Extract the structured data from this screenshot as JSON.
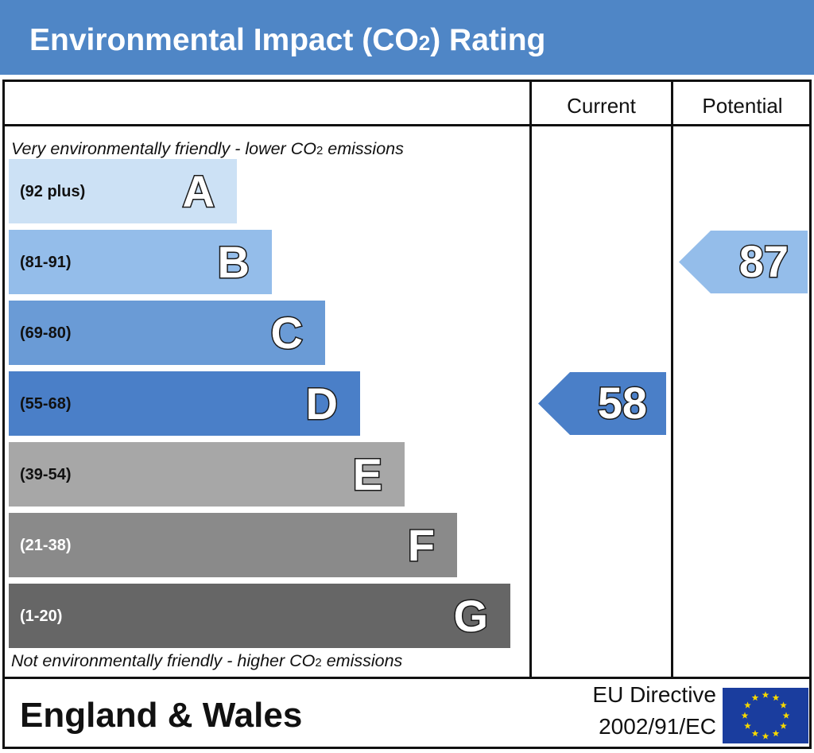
{
  "header": {
    "title_part1": "Environmental Impact (CO",
    "title_sub": "2",
    "title_part2": ") Rating",
    "bg_color": "#4f86c6"
  },
  "columns": {
    "current": "Current",
    "potential": "Potential"
  },
  "notes": {
    "top_part1": "Very environmentally friendly - lower CO",
    "top_sub": "2",
    "top_part2": " emissions",
    "bottom_part1": "Not environmentally friendly - higher CO",
    "bottom_sub": "2",
    "bottom_part2": " emissions"
  },
  "chart_data": {
    "type": "bar",
    "categories": [
      "A",
      "B",
      "C",
      "D",
      "E",
      "F",
      "G"
    ],
    "bands": [
      {
        "letter": "A",
        "range": "(92 plus)",
        "min": 92,
        "max": 100,
        "color": "#cce1f5",
        "range_color": "#111111"
      },
      {
        "letter": "B",
        "range": "(81-91)",
        "min": 81,
        "max": 91,
        "color": "#94bdea",
        "range_color": "#111111"
      },
      {
        "letter": "C",
        "range": "(69-80)",
        "min": 69,
        "max": 80,
        "color": "#6a9bd6",
        "range_color": "#111111"
      },
      {
        "letter": "D",
        "range": "(55-68)",
        "min": 55,
        "max": 68,
        "color": "#4a7fc8",
        "range_color": "#111111"
      },
      {
        "letter": "E",
        "range": "(39-54)",
        "min": 39,
        "max": 54,
        "color": "#a7a7a7",
        "range_color": "#111111"
      },
      {
        "letter": "F",
        "range": "(21-38)",
        "min": 21,
        "max": 38,
        "color": "#8a8a8a",
        "range_color": "#ffffff"
      },
      {
        "letter": "G",
        "range": "(1-20)",
        "min": 1,
        "max": 20,
        "color": "#666666",
        "range_color": "#ffffff"
      }
    ],
    "current": {
      "value": 58,
      "band": "D",
      "color": "#4a7fc8"
    },
    "potential": {
      "value": 87,
      "band": "B",
      "color": "#94bdea"
    }
  },
  "footer": {
    "region": "England & Wales",
    "directive_line1": "EU Directive",
    "directive_line2": "2002/91/EC",
    "flag_color": "#1a3d9e",
    "star_color": "#f5d800"
  }
}
